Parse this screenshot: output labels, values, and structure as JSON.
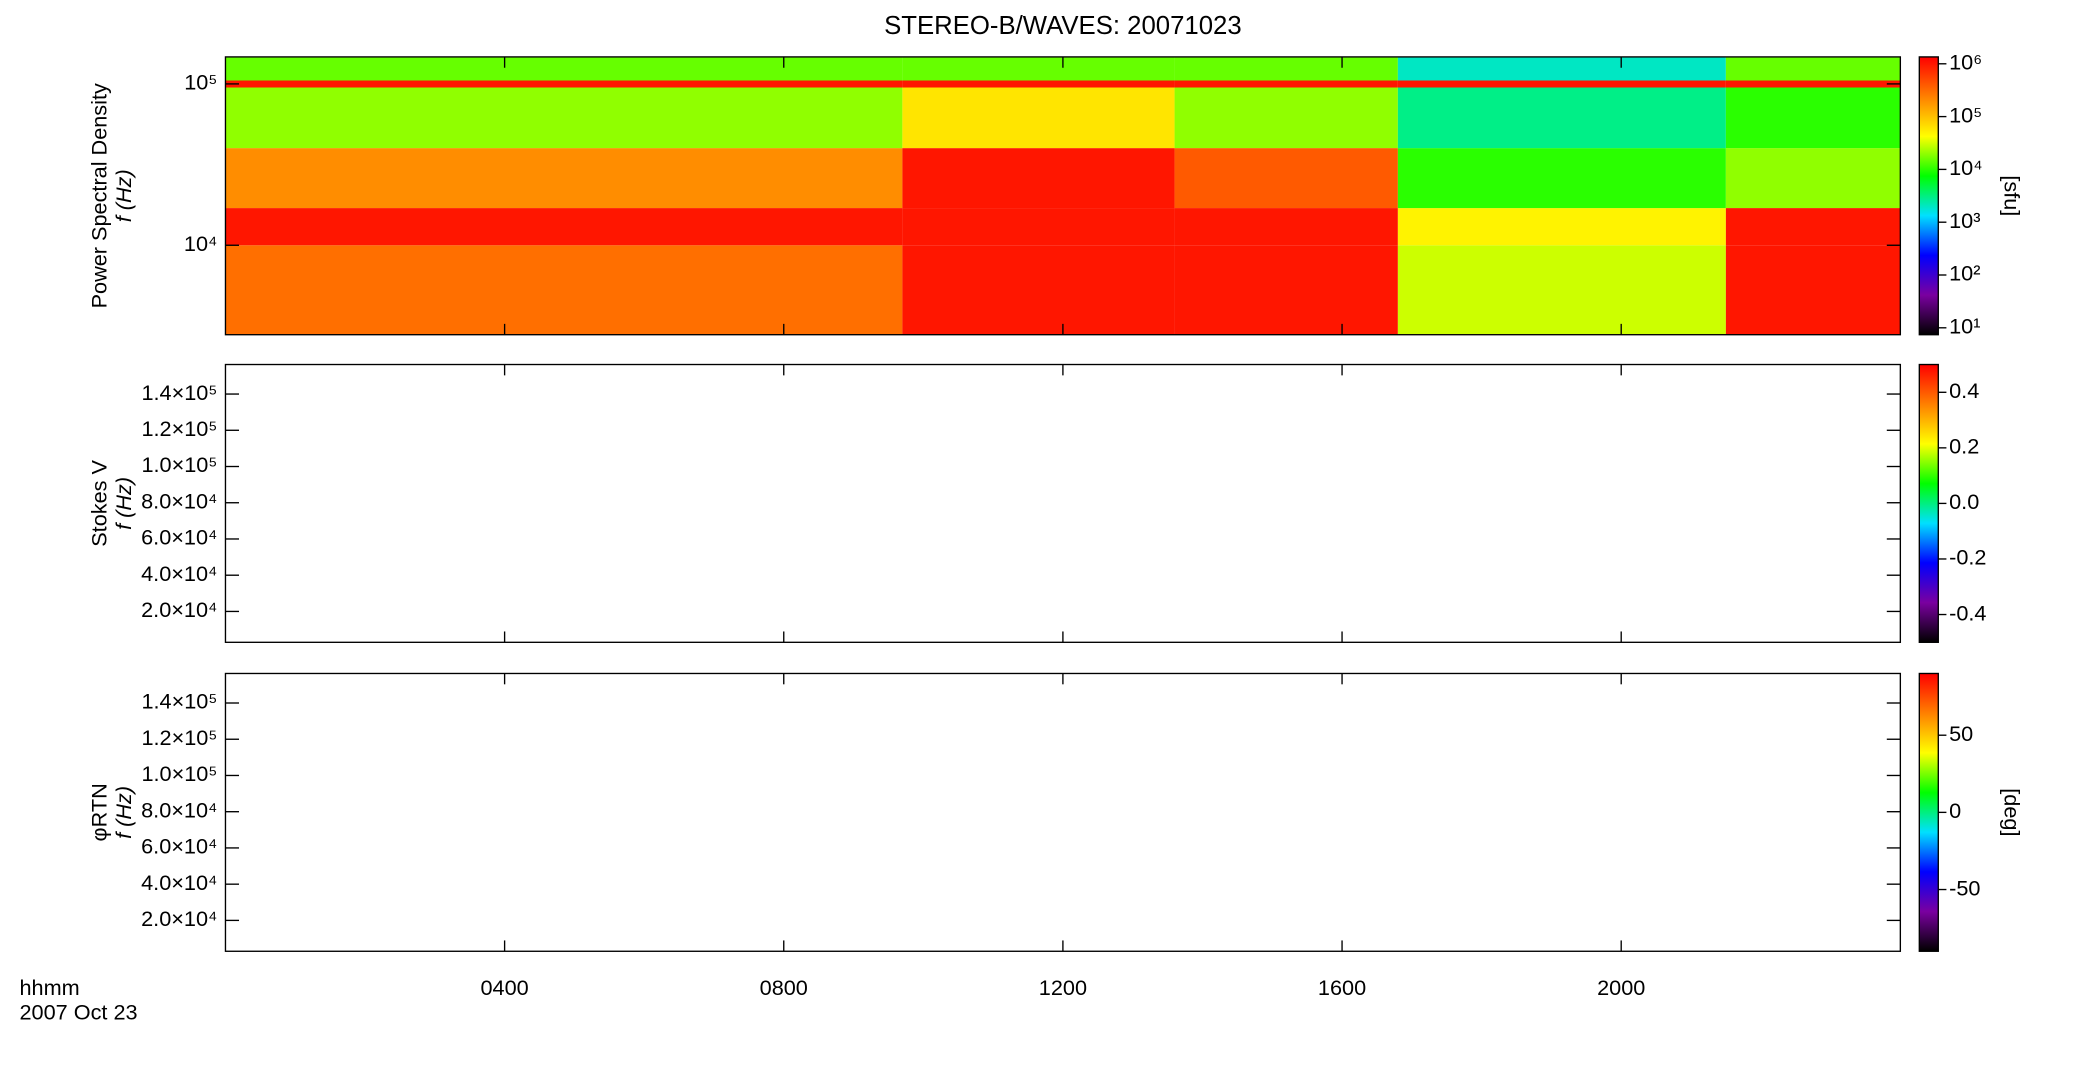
{
  "chart_data": [
    {
      "type": "heatmap",
      "title": "STEREO-B/WAVES: 20071023",
      "ylabel": [
        "Power Spectral Density",
        "f (Hz)"
      ],
      "xlim": [
        0,
        24
      ],
      "x": [
        0,
        9.7,
        13.6,
        16.8,
        21.5,
        24
      ],
      "ylog": true,
      "ylim": [
        2790,
        147000
      ],
      "y": [
        2790,
        10000,
        17000,
        40000,
        95000,
        105000,
        147000
      ],
      "yticks": [
        {
          "value": 10000,
          "label": "10⁴"
        },
        {
          "value": 100000,
          "label": "10⁵"
        }
      ],
      "z": [
        [
          300000,
          1000000,
          1000000,
          30000,
          1000000
        ],
        [
          1000000,
          1000000,
          1000000,
          50000,
          1000000
        ],
        [
          200000,
          1000000,
          400000,
          10000,
          20000
        ],
        [
          20000,
          60000,
          20000,
          3000,
          10000
        ],
        [
          1000000,
          1000000,
          1000000,
          1000000,
          1000000
        ],
        [
          15000,
          15000,
          15000,
          2000,
          15000
        ]
      ],
      "colormap": [
        "#000000",
        "#7a00a0",
        "#0000ff",
        "#00e0ff",
        "#00ff00",
        "#ffff00",
        "#ff8000",
        "#ff0000"
      ],
      "colorbar": {
        "log": true,
        "lim": [
          7.4,
          1350000
        ],
        "label": "[sfu]",
        "ticks": [
          {
            "value": 10,
            "label": "10¹"
          },
          {
            "value": 100,
            "label": "10²"
          },
          {
            "value": 1000,
            "label": "10³"
          },
          {
            "value": 10000,
            "label": "10⁴"
          },
          {
            "value": 100000,
            "label": "10⁵"
          },
          {
            "value": 1000000,
            "label": "10⁶"
          }
        ]
      }
    },
    {
      "type": "heatmap",
      "ylabel": [
        "Stokes V",
        "f (Hz)"
      ],
      "xlim": [
        0,
        24
      ],
      "ylim": [
        2960,
        156300
      ],
      "yticks": [
        {
          "value": 20000,
          "label": "2.0×10⁴"
        },
        {
          "value": 40000,
          "label": "4.0×10⁴"
        },
        {
          "value": 60000,
          "label": "6.0×10⁴"
        },
        {
          "value": 80000,
          "label": "8.0×10⁴"
        },
        {
          "value": 100000,
          "label": "1.0×10⁵"
        },
        {
          "value": 120000,
          "label": "1.2×10⁵"
        },
        {
          "value": 140000,
          "label": "1.4×10⁵"
        }
      ],
      "colorbar": {
        "lim": [
          -0.5,
          0.5
        ],
        "ticks": [
          -0.4,
          -0.2,
          {
            "value": 0,
            "label": "0.0"
          },
          0.2,
          0.4
        ]
      }
    },
    {
      "type": "heatmap",
      "ylabel": [
        "φRTN",
        "f (Hz)"
      ],
      "xlim": [
        0,
        24
      ],
      "ylim": [
        2960,
        156300
      ],
      "yticks": [
        {
          "value": 20000,
          "label": "2.0×10⁴"
        },
        {
          "value": 40000,
          "label": "4.0×10⁴"
        },
        {
          "value": 60000,
          "label": "6.0×10⁴"
        },
        {
          "value": 80000,
          "label": "8.0×10⁴"
        },
        {
          "value": 100000,
          "label": "1.0×10⁵"
        },
        {
          "value": 120000,
          "label": "1.2×10⁵"
        },
        {
          "value": 140000,
          "label": "1.4×10⁵"
        }
      ],
      "xticks": [
        {
          "value": 4,
          "label": "0400"
        },
        {
          "value": 8,
          "label": "0800"
        },
        {
          "value": 12,
          "label": "1200"
        },
        {
          "value": 16,
          "label": "1600"
        },
        {
          "value": 20,
          "label": "2000"
        }
      ],
      "x_label": "hhmm",
      "date": "2007 Oct 23",
      "colorbar": {
        "lim": [
          -90,
          90
        ],
        "label": "[deg]",
        "ticks": [
          -50,
          0,
          50
        ]
      }
    }
  ]
}
